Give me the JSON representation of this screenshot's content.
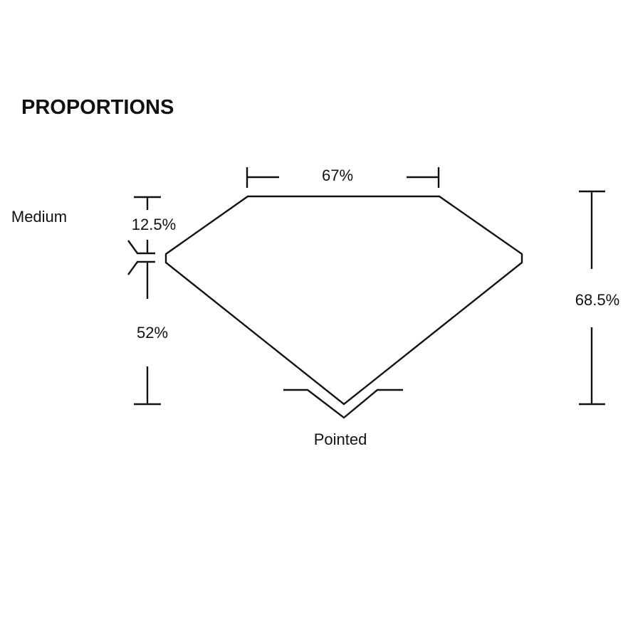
{
  "title": "PROPORTIONS",
  "labels": {
    "table_width": "67%",
    "crown_height": "12.5%",
    "pavilion_depth": "52%",
    "total_depth": "68.5%",
    "girdle": "Medium",
    "culet": "Pointed"
  }
}
